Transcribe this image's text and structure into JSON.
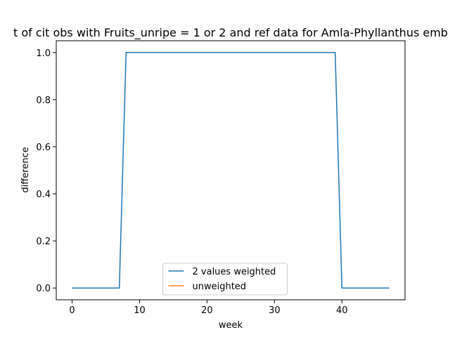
{
  "chart_data": {
    "type": "line",
    "title": "t of cit obs with Fruits_unripe = 1 or 2 and ref data for Amla-Phyllanthus emb",
    "xlabel": "week",
    "ylabel": "difference",
    "x": [
      0,
      1,
      2,
      3,
      4,
      5,
      6,
      7,
      8,
      9,
      10,
      11,
      12,
      13,
      14,
      15,
      16,
      17,
      18,
      19,
      20,
      21,
      22,
      23,
      24,
      25,
      26,
      27,
      28,
      29,
      30,
      31,
      32,
      33,
      34,
      35,
      36,
      37,
      38,
      39,
      40,
      41,
      42,
      43,
      44,
      45,
      46,
      47
    ],
    "series": [
      {
        "name": "2 values weighted",
        "color": "#1f77b4",
        "values": [
          0,
          0,
          0,
          0,
          0,
          0,
          0,
          0,
          1,
          1,
          1,
          1,
          1,
          1,
          1,
          1,
          1,
          1,
          1,
          1,
          1,
          1,
          1,
          1,
          1,
          1,
          1,
          1,
          1,
          1,
          1,
          1,
          1,
          1,
          1,
          1,
          1,
          1,
          1,
          1,
          0,
          0,
          0,
          0,
          0,
          0,
          0,
          0
        ]
      },
      {
        "name": "unweighted",
        "color": "#ff7f0e",
        "values": [
          null,
          null,
          null,
          null,
          null,
          null,
          null,
          null,
          null,
          null,
          null,
          null,
          null,
          null,
          null,
          null,
          null,
          null,
          null,
          null,
          null,
          null,
          null,
          null,
          null,
          null,
          null,
          null,
          null,
          null,
          null,
          null,
          null,
          null,
          null,
          null,
          null,
          null,
          null,
          null,
          null,
          null,
          null,
          null,
          null,
          null,
          null,
          null
        ]
      }
    ],
    "xlim": [
      -2.35,
      49.35
    ],
    "xticks": [
      0,
      10,
      20,
      30,
      40
    ],
    "ylim": [
      -0.05,
      1.05
    ],
    "yticks": [
      {
        "value": 0,
        "label": "0.0"
      },
      0.2,
      0.4,
      0.6,
      0.8,
      {
        "value": 1,
        "label": "1.0"
      }
    ],
    "legend": "lower center"
  }
}
